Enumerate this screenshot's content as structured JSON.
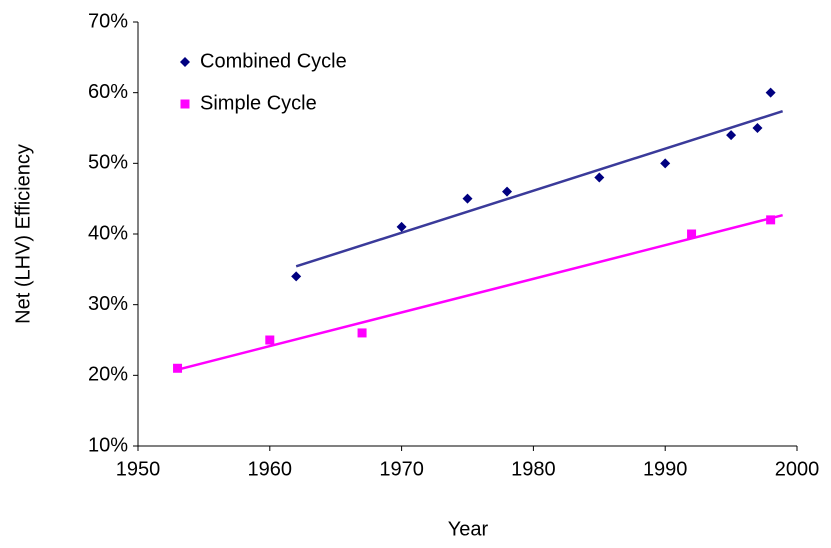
{
  "chart_data": {
    "type": "scatter",
    "x_label": "Year",
    "y_label": "Net (LHV) Efficiency",
    "xlim": [
      1950,
      2000
    ],
    "xticks": [
      1950,
      1960,
      1970,
      1980,
      1990,
      2000
    ],
    "ylim": [
      10,
      70
    ],
    "yticks": [
      {
        "value": 10,
        "label": "10%"
      },
      {
        "value": 20,
        "label": "20%"
      },
      {
        "value": 30,
        "label": "30%"
      },
      {
        "value": 40,
        "label": "40%"
      },
      {
        "value": 50,
        "label": "50%"
      },
      {
        "value": 60,
        "label": "60%"
      },
      {
        "value": 70,
        "label": "70%"
      }
    ],
    "grid": false,
    "legend": "upper left",
    "trendline": true,
    "series": [
      {
        "name": "Combined Cycle",
        "color": "#000080",
        "line_color": "#3a3a9a",
        "marker": "diamond",
        "x": [
          1962,
          1970,
          1975,
          1978,
          1985,
          1990,
          1995,
          1997,
          1998
        ],
        "values": [
          34,
          41,
          45,
          46,
          48,
          50,
          54,
          55,
          60
        ]
      },
      {
        "name": "Simple Cycle",
        "color": "#ff00ff",
        "line_color": "#ff00ff",
        "marker": "square",
        "x": [
          1953,
          1960,
          1967,
          1992,
          1998
        ],
        "values": [
          21,
          25,
          26,
          40,
          42
        ]
      }
    ]
  }
}
